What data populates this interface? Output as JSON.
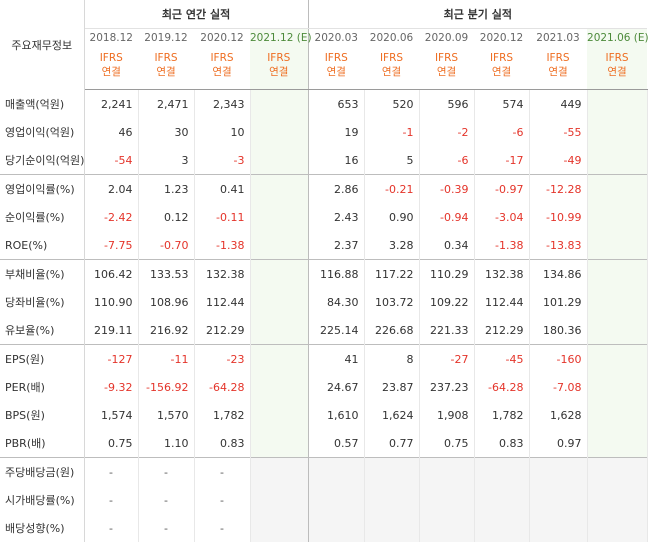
{
  "table": {
    "corner_label": "주요재무정보",
    "group_annual": "최근 연간 실적",
    "group_quarter": "최근 분기 실적",
    "annual_periods": [
      "2018.12",
      "2019.12",
      "2020.12",
      "2021.12 (E)"
    ],
    "quarter_periods": [
      "2020.03",
      "2020.06",
      "2020.09",
      "2020.12",
      "2021.03",
      "2021.06 (E)"
    ],
    "basis_line1": "IFRS",
    "basis_line2": "연결",
    "rows": [
      {
        "label": "매출액(억원)",
        "annual": [
          "2,241",
          "2,471",
          "2,343",
          ""
        ],
        "quarter": [
          "653",
          "520",
          "596",
          "574",
          "449",
          ""
        ]
      },
      {
        "label": "영업이익(억원)",
        "annual": [
          "46",
          "30",
          "10",
          ""
        ],
        "quarter": [
          "19",
          "-1",
          "-2",
          "-6",
          "-55",
          ""
        ]
      },
      {
        "label": "당기순이익(억원)",
        "annual": [
          "-54",
          "3",
          "-3",
          ""
        ],
        "quarter": [
          "16",
          "5",
          "-6",
          "-17",
          "-49",
          ""
        ]
      },
      {
        "label": "영업이익률(%)",
        "annual": [
          "2.04",
          "1.23",
          "0.41",
          ""
        ],
        "quarter": [
          "2.86",
          "-0.21",
          "-0.39",
          "-0.97",
          "-12.28",
          ""
        ]
      },
      {
        "label": "순이익률(%)",
        "annual": [
          "-2.42",
          "0.12",
          "-0.11",
          ""
        ],
        "quarter": [
          "2.43",
          "0.90",
          "-0.94",
          "-3.04",
          "-10.99",
          ""
        ]
      },
      {
        "label": "ROE(%)",
        "annual": [
          "-7.75",
          "-0.70",
          "-1.38",
          ""
        ],
        "quarter": [
          "2.37",
          "3.28",
          "0.34",
          "-1.38",
          "-13.83",
          ""
        ]
      },
      {
        "label": "부채비율(%)",
        "annual": [
          "106.42",
          "133.53",
          "132.38",
          ""
        ],
        "quarter": [
          "116.88",
          "117.22",
          "110.29",
          "132.38",
          "134.86",
          ""
        ]
      },
      {
        "label": "당좌비율(%)",
        "annual": [
          "110.90",
          "108.96",
          "112.44",
          ""
        ],
        "quarter": [
          "84.30",
          "103.72",
          "109.22",
          "112.44",
          "101.29",
          ""
        ]
      },
      {
        "label": "유보율(%)",
        "annual": [
          "219.11",
          "216.92",
          "212.29",
          ""
        ],
        "quarter": [
          "225.14",
          "226.68",
          "221.33",
          "212.29",
          "180.36",
          ""
        ]
      },
      {
        "label": "EPS(원)",
        "annual": [
          "-127",
          "-11",
          "-23",
          ""
        ],
        "quarter": [
          "41",
          "8",
          "-27",
          "-45",
          "-160",
          ""
        ]
      },
      {
        "label": "PER(배)",
        "annual": [
          "-9.32",
          "-156.92",
          "-64.28",
          ""
        ],
        "quarter": [
          "24.67",
          "23.87",
          "237.23",
          "-64.28",
          "-7.08",
          ""
        ]
      },
      {
        "label": "BPS(원)",
        "annual": [
          "1,574",
          "1,570",
          "1,782",
          ""
        ],
        "quarter": [
          "1,610",
          "1,624",
          "1,908",
          "1,782",
          "1,628",
          ""
        ]
      },
      {
        "label": "PBR(배)",
        "annual": [
          "0.75",
          "1.10",
          "0.83",
          ""
        ],
        "quarter": [
          "0.57",
          "0.77",
          "0.75",
          "0.83",
          "0.97",
          ""
        ]
      },
      {
        "label": "주당배당금(원)",
        "annual": [
          "-",
          "-",
          "-",
          ""
        ],
        "quarter": [
          "",
          "",
          "",
          "",
          "",
          ""
        ]
      },
      {
        "label": "시가배당률(%)",
        "annual": [
          "-",
          "-",
          "-",
          ""
        ],
        "quarter": [
          "",
          "",
          "",
          "",
          "",
          ""
        ]
      },
      {
        "label": "배당성향(%)",
        "annual": [
          "-",
          "-",
          "-",
          ""
        ],
        "quarter": [
          "",
          "",
          "",
          "",
          "",
          ""
        ]
      }
    ]
  },
  "colors": {
    "negative": "#e4342a",
    "basis": "#ee6d21",
    "estimate_bg": "#f4faf1",
    "dividend_bg": "#f5f5f5"
  }
}
